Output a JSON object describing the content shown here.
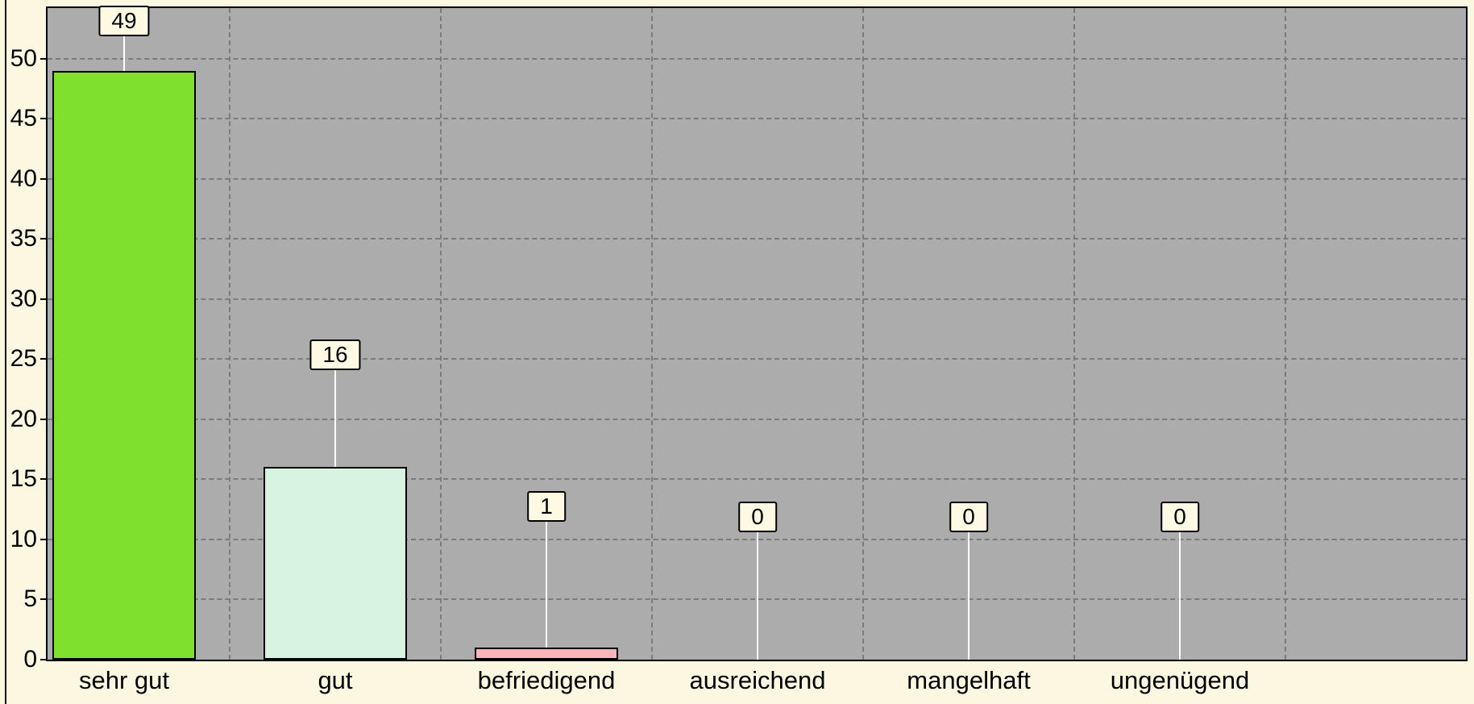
{
  "chart_data": {
    "type": "bar",
    "categories": [
      "sehr gut",
      "gut",
      "befriedigend",
      "ausreichend",
      "mangelhaft",
      "ungenügend"
    ],
    "values": [
      49,
      16,
      1,
      0,
      0,
      0
    ],
    "value_labels": [
      "49",
      "16",
      "1",
      "0",
      "0",
      "0"
    ],
    "bar_colors": [
      "#7FE12D",
      "#D8F3E2",
      "#F8B6BA",
      null,
      null,
      null
    ],
    "y_ticks": [
      0,
      5,
      10,
      15,
      20,
      25,
      30,
      35,
      40,
      45,
      50
    ],
    "ylim": [
      0,
      54.2
    ],
    "xlabel": "",
    "ylabel": "",
    "legend": "none",
    "grid": "dashed",
    "value_labels_in_boxes": true,
    "colors": {
      "page_background": "#FBF7E0",
      "plot_background": "#ACACAC",
      "grid_line": "#7B7B7B",
      "axis_border": "#000000",
      "label_box_background": "#FDF9E2",
      "label_box_border": "#000000",
      "connector_line": "#FFFFFF",
      "text": "#000000"
    }
  }
}
